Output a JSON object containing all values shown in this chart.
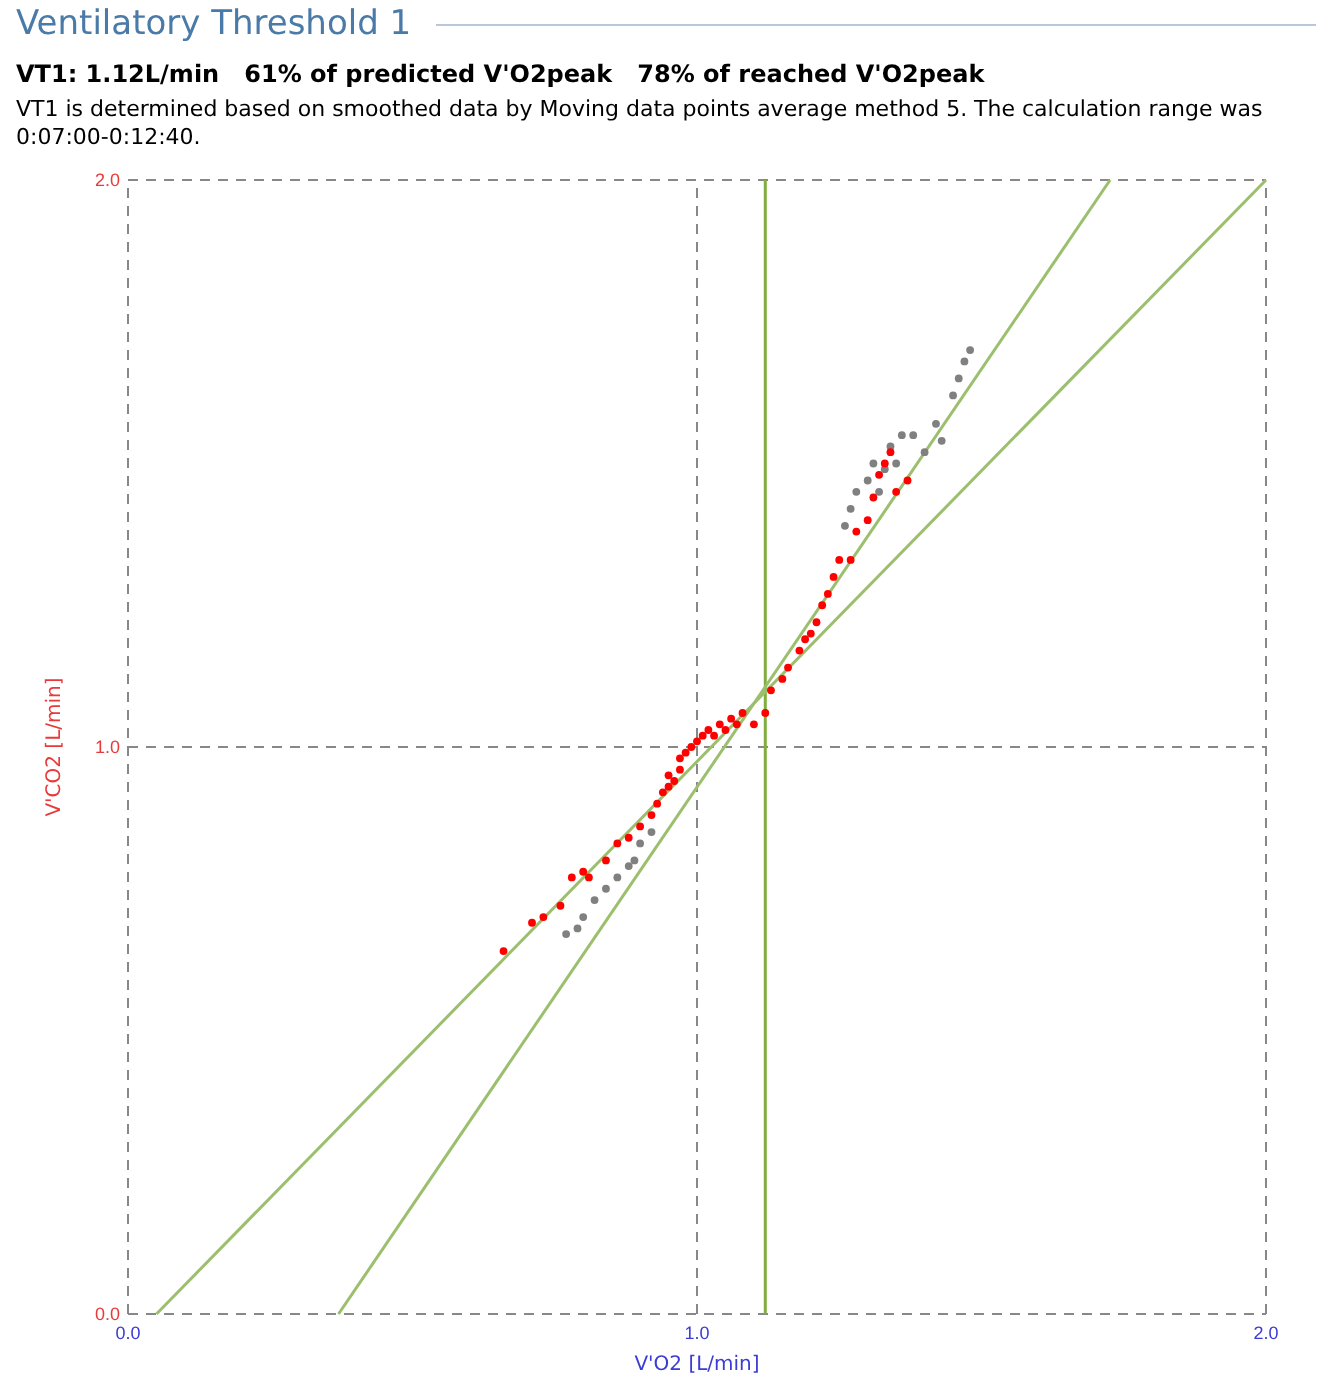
{
  "chart_data": {
    "type": "scatter",
    "title": "Ventilatory Threshold 1",
    "subtitle": "VT1: 1.12L/min   61% of predicted V'O2peak   78% of reached V'O2peak",
    "annotations": [
      "VT1 is determined based on smoothed data by Moving data points average method 5. The calculation range was 0:07:00-0:12:40."
    ],
    "xlabel": "V'O2 [L/min]",
    "ylabel": "V'CO2 [L/min]",
    "xlim": [
      0,
      2
    ],
    "ylim": [
      0,
      2
    ],
    "xticks": [
      {
        "value": 0,
        "label": "0.0"
      },
      {
        "value": 1,
        "label": "1.0"
      },
      {
        "value": 2,
        "label": "2.0"
      }
    ],
    "yticks": [
      {
        "value": 0,
        "label": "0.0"
      },
      {
        "value": 1,
        "label": "1.0"
      },
      {
        "value": 2,
        "label": "2.0"
      }
    ],
    "grid": true,
    "marker": "circle",
    "ref_lines": [
      {
        "axis": "x",
        "value": 1.12,
        "color": "#7fae3c",
        "line_style": "solid"
      }
    ],
    "series": [
      {
        "type": "line",
        "color": "#9cbf6e",
        "x": [
          0.05,
          2.0
        ],
        "values": [
          0,
          2.0
        ],
        "marker": "none"
      },
      {
        "type": "line",
        "color": "#9cbf6e",
        "x": [
          0.37,
          1.726
        ],
        "values": [
          0,
          2.0
        ],
        "marker": "none"
      },
      {
        "color": "#808080",
        "x": [
          0.77,
          0.79,
          0.8,
          0.82,
          0.84,
          0.86,
          0.88,
          0.89,
          0.9,
          0.92,
          1.26,
          1.27,
          1.28,
          1.3,
          1.31,
          1.32,
          1.33,
          1.34,
          1.35,
          1.36,
          1.38,
          1.4,
          1.42,
          1.43,
          1.45,
          1.47,
          1.48,
          1.46
        ],
        "values": [
          0.67,
          0.68,
          0.7,
          0.73,
          0.75,
          0.77,
          0.79,
          0.8,
          0.83,
          0.85,
          1.39,
          1.42,
          1.45,
          1.47,
          1.5,
          1.45,
          1.49,
          1.53,
          1.5,
          1.55,
          1.55,
          1.52,
          1.57,
          1.54,
          1.62,
          1.68,
          1.7,
          1.65
        ]
      },
      {
        "color": "#ff0000",
        "x": [
          0.66,
          0.71,
          0.73,
          0.76,
          0.78,
          0.8,
          0.81,
          0.84,
          0.86,
          0.88,
          0.9,
          0.92,
          0.93,
          0.94,
          0.95,
          0.95,
          0.96,
          0.97,
          0.97,
          0.98,
          0.99,
          1.0,
          1.01,
          1.02,
          1.03,
          1.04,
          1.05,
          1.06,
          1.07,
          1.08,
          1.1,
          1.12,
          1.13,
          1.15,
          1.16,
          1.18,
          1.19,
          1.2,
          1.21,
          1.22,
          1.23,
          1.24,
          1.25,
          1.27,
          1.28,
          1.3,
          1.31,
          1.32,
          1.33,
          1.34,
          1.35,
          1.37
        ],
        "values": [
          0.64,
          0.69,
          0.7,
          0.72,
          0.77,
          0.78,
          0.77,
          0.8,
          0.83,
          0.84,
          0.86,
          0.88,
          0.9,
          0.92,
          0.93,
          0.95,
          0.94,
          0.96,
          0.98,
          0.99,
          1.0,
          1.01,
          1.02,
          1.03,
          1.02,
          1.04,
          1.03,
          1.05,
          1.04,
          1.06,
          1.04,
          1.06,
          1.1,
          1.12,
          1.14,
          1.17,
          1.19,
          1.2,
          1.22,
          1.25,
          1.27,
          1.3,
          1.33,
          1.33,
          1.38,
          1.4,
          1.44,
          1.48,
          1.5,
          1.52,
          1.45,
          1.47
        ]
      }
    ]
  }
}
